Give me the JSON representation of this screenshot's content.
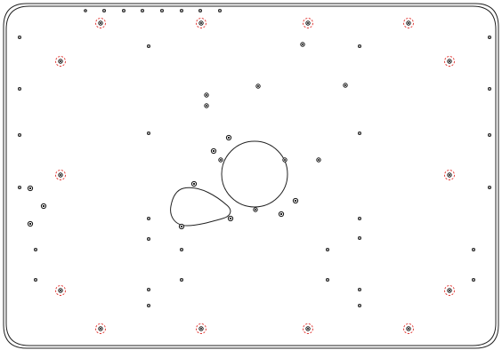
{
  "drawing": {
    "line_color": "#222222",
    "hole_color": "#111111",
    "mark_color": "#e0302c",
    "background": "#ffffff"
  }
}
